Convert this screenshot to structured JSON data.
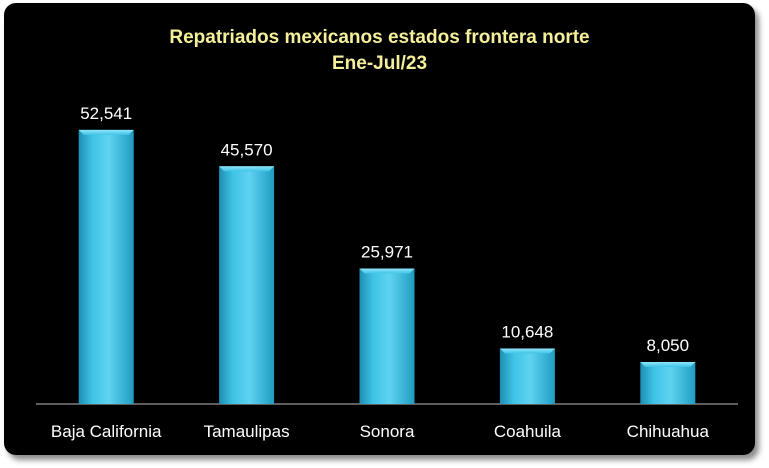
{
  "chart_data": {
    "type": "bar",
    "title": "Repatriados mexicanos estados frontera norte",
    "subtitle": "Ene-Jul/23",
    "categories": [
      "Baja California",
      "Tamaulipas",
      "Sonora",
      "Coahuila",
      "Chihuahua"
    ],
    "values": [
      52541,
      45570,
      25971,
      10648,
      8050
    ],
    "value_labels": [
      "52,541",
      "45,570",
      "25,971",
      "10,648",
      "8,050"
    ],
    "bar_color": "#3fc3e6",
    "background_color": "#000000",
    "title_color": "#f5ef9a",
    "ylim": [
      0,
      60000
    ],
    "grid": false,
    "legend": "none"
  }
}
